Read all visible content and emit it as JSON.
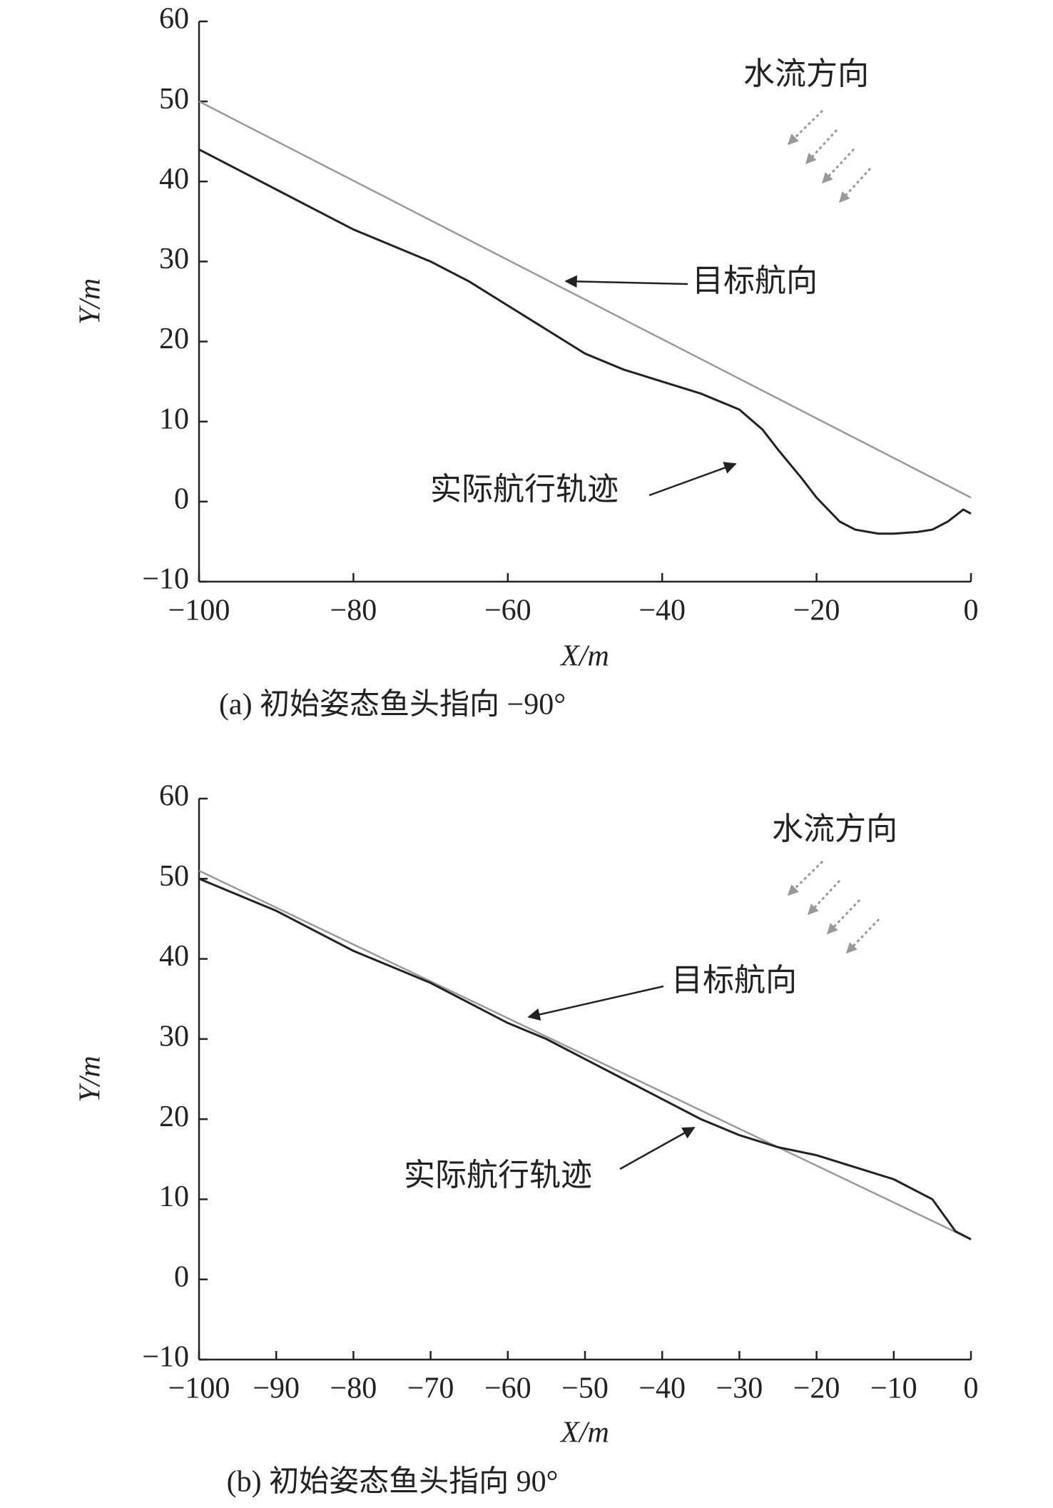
{
  "chart_data": [
    {
      "type": "line",
      "title": "(a) 初始姿态鱼头指向 −90°",
      "xlabel": "X/m",
      "ylabel": "Y/m",
      "flow_label": "水流方向",
      "xlim": [
        -100,
        0
      ],
      "ylim": [
        -10,
        60
      ],
      "xticks": [
        {
          "value": -100,
          "label": "−100"
        },
        {
          "value": -80,
          "label": "−80"
        },
        {
          "value": -60,
          "label": "−60"
        },
        {
          "value": -40,
          "label": "−40"
        },
        {
          "value": -20,
          "label": "−20"
        },
        0
      ],
      "yticks": [
        {
          "value": -10,
          "label": "−10"
        },
        0,
        10,
        20,
        30,
        40,
        50,
        60
      ],
      "series": [
        {
          "name": "目标航向",
          "color": "#999999",
          "x": [
            -100,
            0
          ],
          "values": [
            50,
            0.5
          ]
        },
        {
          "name": "实际航行轨迹",
          "color": "#222222",
          "x": [
            -100,
            -95,
            -90,
            -85,
            -80,
            -75,
            -70,
            -65,
            -60,
            -55,
            -50,
            -45,
            -40,
            -35,
            -30,
            -27,
            -25,
            -22,
            -20,
            -17,
            -15,
            -12,
            -10,
            -7,
            -5,
            -3,
            -1,
            0
          ],
          "values": [
            44,
            41.5,
            39,
            36.5,
            34,
            32,
            30,
            27.5,
            24.5,
            21.5,
            18.5,
            16.5,
            15,
            13.5,
            11.5,
            9,
            6.5,
            3,
            0.5,
            -2.5,
            -3.5,
            -4,
            -4,
            -3.8,
            -3.5,
            -2.5,
            -1,
            -1.5
          ]
        }
      ]
    },
    {
      "type": "line",
      "title": "(b) 初始姿态鱼头指向 90°",
      "xlabel": "X/m",
      "ylabel": "Y/m",
      "flow_label": "水流方向",
      "xlim": [
        -100,
        0
      ],
      "ylim": [
        -10,
        60
      ],
      "xticks": [
        {
          "value": -100,
          "label": "−100"
        },
        {
          "value": -90,
          "label": "−90"
        },
        {
          "value": -80,
          "label": "−80"
        },
        {
          "value": -70,
          "label": "−70"
        },
        {
          "value": -60,
          "label": "−60"
        },
        {
          "value": -50,
          "label": "−50"
        },
        {
          "value": -40,
          "label": "−40"
        },
        {
          "value": -30,
          "label": "−30"
        },
        {
          "value": -20,
          "label": "−20"
        },
        {
          "value": -10,
          "label": "−10"
        },
        0
      ],
      "yticks": [
        {
          "value": -10,
          "label": "−10"
        },
        0,
        10,
        20,
        30,
        40,
        50,
        60
      ],
      "series": [
        {
          "name": "目标航向",
          "color": "#999999",
          "x": [
            -100,
            0
          ],
          "values": [
            51,
            5
          ]
        },
        {
          "name": "实际航行轨迹",
          "color": "#222222",
          "x": [
            -100,
            -95,
            -90,
            -85,
            -80,
            -75,
            -70,
            -65,
            -60,
            -55,
            -50,
            -45,
            -40,
            -35,
            -30,
            -25,
            -20,
            -15,
            -10,
            -5,
            -2,
            0
          ],
          "values": [
            50,
            48,
            46,
            43.5,
            41,
            39,
            37,
            34.5,
            32,
            30,
            27.5,
            25,
            22.5,
            20,
            18,
            16.5,
            15.5,
            14,
            12.5,
            10,
            6,
            5
          ]
        }
      ]
    }
  ]
}
